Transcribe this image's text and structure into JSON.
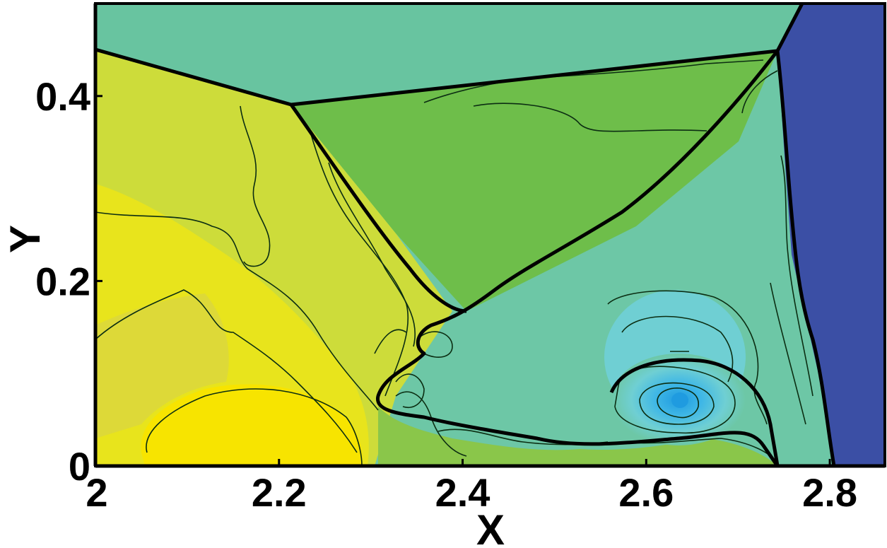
{
  "chart_data": {
    "type": "heatmap",
    "subtype": "filled-contour",
    "title": "",
    "xlabel": "X",
    "ylabel": "Y",
    "xlim": [
      2.0,
      2.86
    ],
    "ylim": [
      0.0,
      0.5
    ],
    "x_ticks": [
      2.0,
      2.2,
      2.4,
      2.6,
      2.8
    ],
    "x_tick_labels": [
      "2",
      "2.2",
      "2.4",
      "2.6",
      "2.8"
    ],
    "y_ticks": [
      0.0,
      0.2,
      0.4
    ],
    "y_tick_labels": [
      "0",
      "0.2",
      "0.4"
    ],
    "grid": false,
    "legend": "none",
    "colors": {
      "yellow_high": "#f7e400",
      "yellow": "#e8e41c",
      "yellow_green": "#cddc3a",
      "light_green": "#a6cf48",
      "green": "#6ebe4a",
      "teal_green": "#68c4a0",
      "teal": "#6dc7a6",
      "light_blue": "#6fcfd3",
      "cyan": "#3fb7e6",
      "blue": "#1f9be0",
      "dark_blue": "#3b4fa5",
      "contour_line": "#0b2d12"
    },
    "features": {
      "triple_point_upper": [
        2.21,
        0.39
      ],
      "triple_point_right": [
        2.74,
        0.45
      ],
      "mach_stem_top": [
        2.73,
        0.46
      ],
      "mach_stem_bottom": [
        2.8,
        0.0
      ],
      "vortex_center": [
        2.63,
        0.07
      ],
      "slip_line_roll_up": [
        2.31,
        0.07
      ]
    }
  }
}
